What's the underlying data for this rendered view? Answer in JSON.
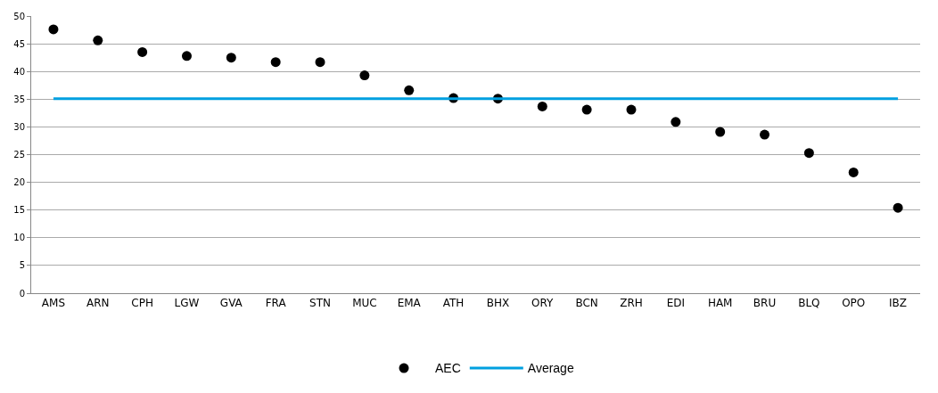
{
  "chart_data": {
    "type": "scatter",
    "categories": [
      "AMS",
      "ARN",
      "CPH",
      "LGW",
      "GVA",
      "FRA",
      "STN",
      "MUC",
      "EMA",
      "ATH",
      "BHX",
      "ORY",
      "BCN",
      "ZRH",
      "EDI",
      "HAM",
      "BRU",
      "BLQ",
      "OPO",
      "IBZ"
    ],
    "series": [
      {
        "name": "AEC",
        "color": "#000000",
        "marker": "circle",
        "values": [
          47.6,
          45.6,
          43.5,
          42.8,
          42.5,
          41.7,
          41.7,
          39.3,
          36.6,
          35.2,
          35.1,
          33.7,
          33.1,
          33.1,
          30.9,
          29.1,
          28.6,
          25.3,
          21.8,
          15.4
        ]
      },
      {
        "name": "Average",
        "type": "line",
        "color": "#00a0e0",
        "marker": "none",
        "line_style": "solid",
        "values": [
          35.1,
          35.1,
          35.1,
          35.1,
          35.1,
          35.1,
          35.1,
          35.1,
          35.1,
          35.1,
          35.1,
          35.1,
          35.1,
          35.1,
          35.1,
          35.1,
          35.1,
          35.1,
          35.1,
          35.1
        ]
      }
    ],
    "ylim": [
      0,
      50
    ],
    "yticks": [
      0,
      5,
      10,
      15,
      20,
      25,
      30,
      35,
      40,
      45,
      50
    ],
    "grid": "y",
    "legend": "bottom"
  }
}
